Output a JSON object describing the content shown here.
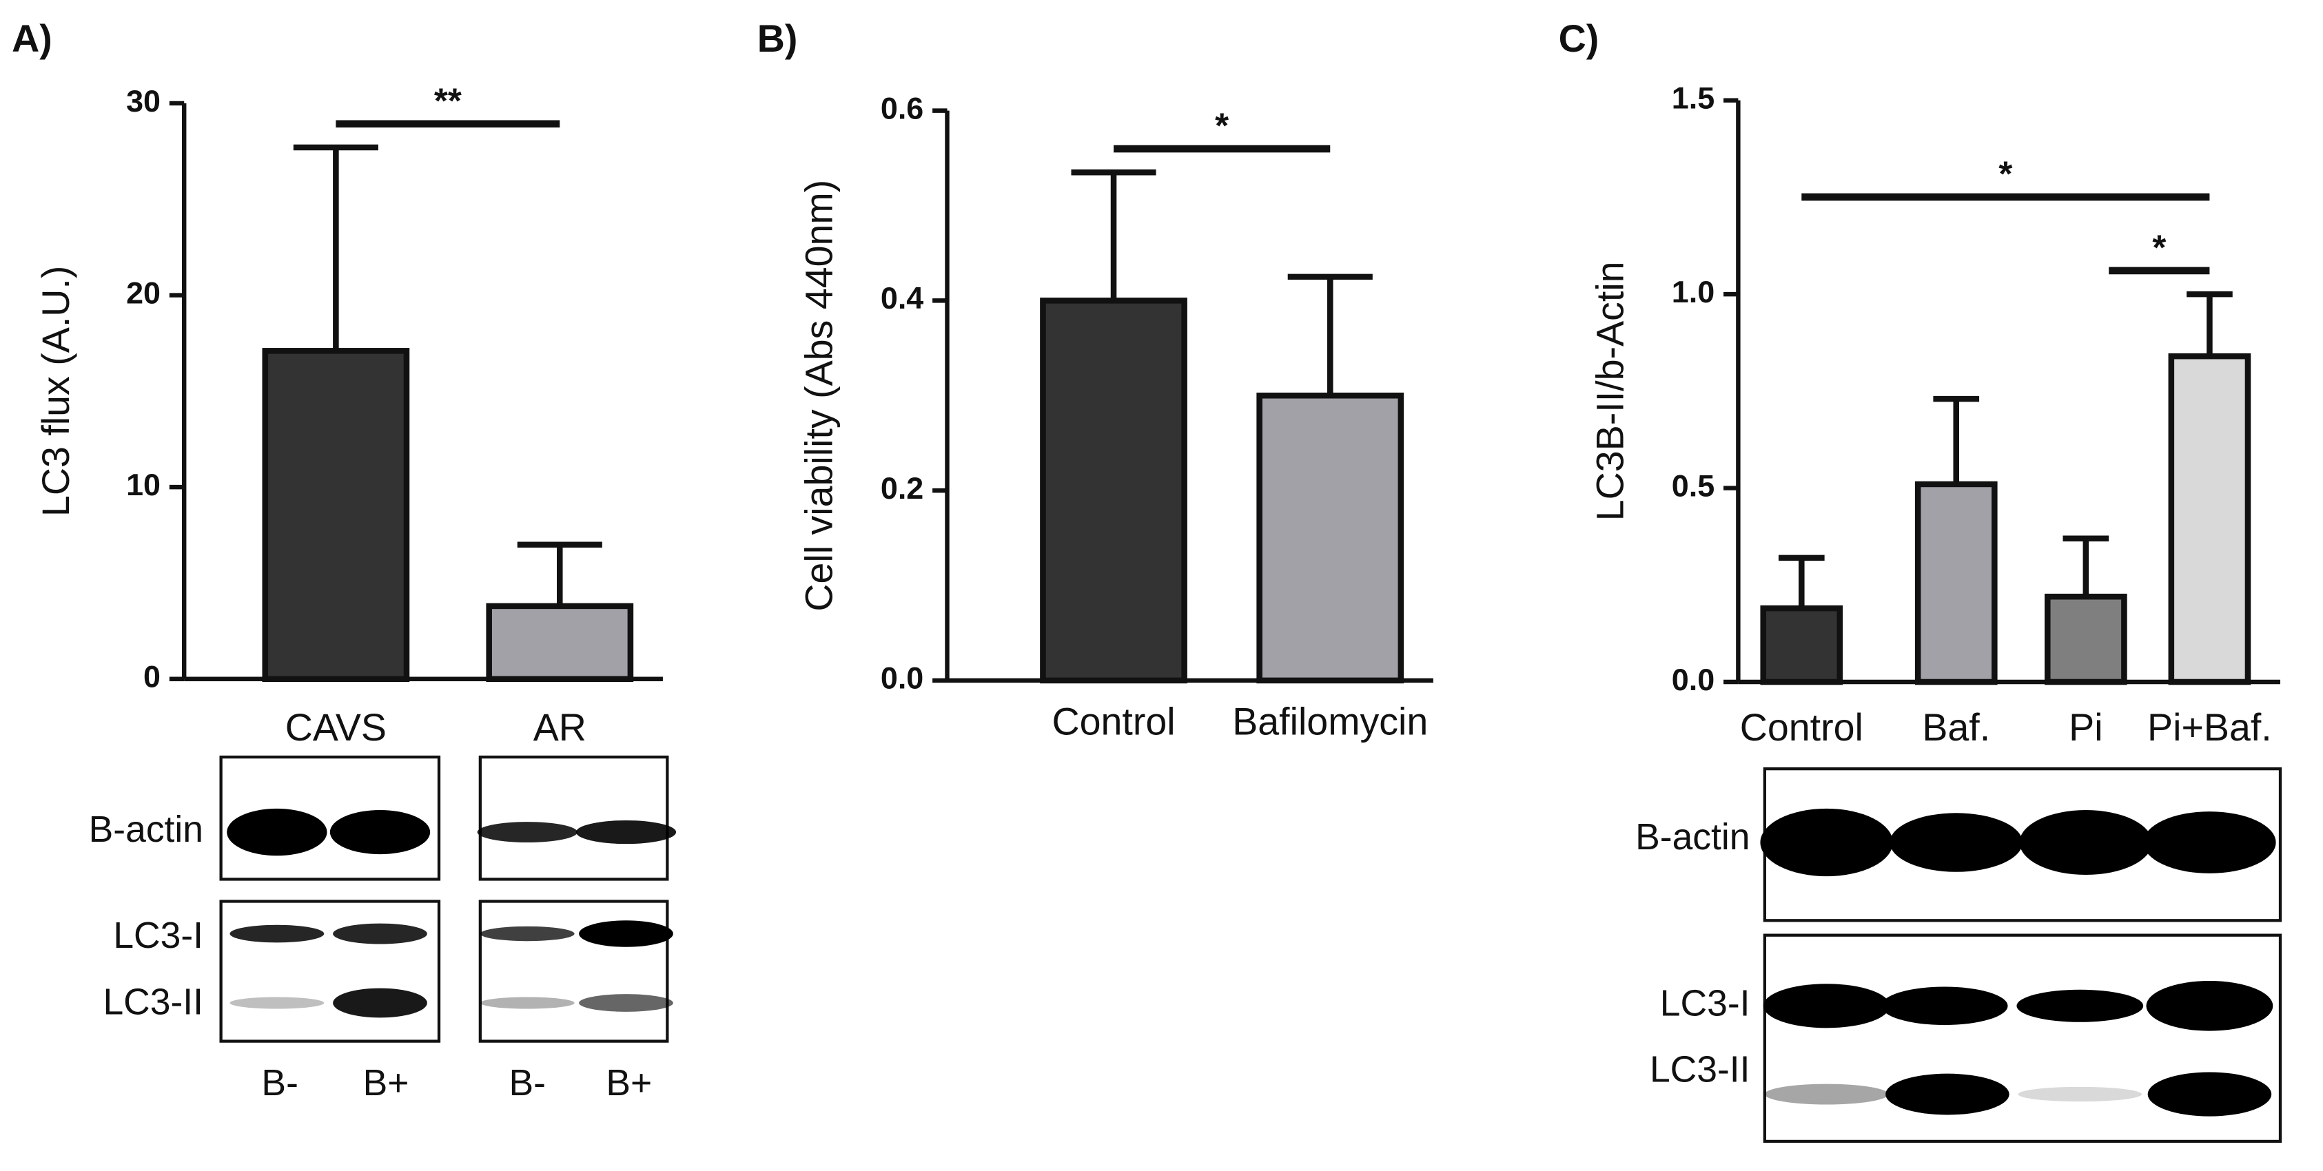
{
  "chart_data": [
    {
      "type": "bar",
      "label": "A)",
      "ylabel": "LC3 flux (A.U.)",
      "categories": [
        "CAVS",
        "AR"
      ],
      "values": [
        17.1,
        3.8
      ],
      "errors": [
        10.6,
        3.2
      ],
      "colors": [
        "#333333",
        "#a2a1a8"
      ],
      "ylim": [
        0,
        30
      ],
      "yticks": [
        0,
        10,
        20,
        30
      ],
      "annotations": [
        {
          "text": "**",
          "between": [
            "CAVS",
            "AR"
          ]
        }
      ],
      "blot": {
        "bands": [
          "B-actin",
          "LC3-I",
          "LC3-II"
        ],
        "lanes": [
          "B-",
          "B+",
          "B-",
          "B+"
        ]
      }
    },
    {
      "type": "bar",
      "label": "B)",
      "ylabel": "Cell viability (Abs 440nm)",
      "categories": [
        "Control",
        "Bafilomycin"
      ],
      "values": [
        0.4,
        0.3
      ],
      "errors": [
        0.135,
        0.125
      ],
      "colors": [
        "#333333",
        "#a2a1a8"
      ],
      "ylim": [
        0,
        0.6
      ],
      "yticks": [
        {
          "value": 0,
          "label": "0.0"
        },
        0.2,
        0.4,
        0.6
      ],
      "annotations": [
        {
          "text": "*",
          "between": [
            "Control",
            "Bafilomycin"
          ]
        }
      ]
    },
    {
      "type": "bar",
      "label": "C)",
      "ylabel": "LC3B-II/b-Actin",
      "categories": [
        "Control",
        "Baf.",
        "Pi",
        "Pi+Baf."
      ],
      "values": [
        0.19,
        0.51,
        0.22,
        0.84
      ],
      "errors": [
        0.13,
        0.22,
        0.15,
        0.16
      ],
      "colors": [
        "#333333",
        "#a2a1a8",
        "#7f7f7f",
        "#d9d9d9"
      ],
      "ylim": [
        0,
        1.5
      ],
      "yticks": [
        {
          "value": 0,
          "label": "0.0"
        },
        0.5,
        {
          "value": 1,
          "label": "1.0"
        },
        1.5
      ],
      "annotations": [
        {
          "text": "*",
          "between": [
            "Pi",
            "Pi+Baf."
          ]
        },
        {
          "text": "*",
          "between": [
            "Control",
            "Pi+Baf."
          ]
        }
      ],
      "blot": {
        "bands": [
          "B-actin",
          "LC3-I",
          "LC3-II"
        ]
      }
    }
  ]
}
